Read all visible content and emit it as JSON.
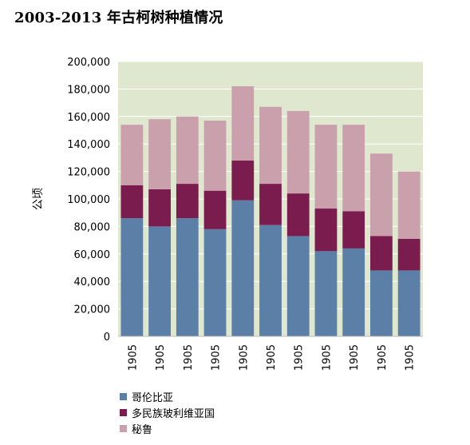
{
  "chart_data": {
    "type": "bar",
    "stacked": true,
    "title": "2003-2013 年古柯树种植情况",
    "ylabel": "公顷",
    "ylim": [
      0,
      200000
    ],
    "yticks": [
      0,
      20000,
      40000,
      60000,
      80000,
      100000,
      120000,
      140000,
      160000,
      180000,
      200000
    ],
    "ytick_labels": [
      "0",
      "20,000",
      "40,000",
      "60,000",
      "80,000",
      "100,000",
      "120,000",
      "140,000",
      "160,000",
      "180,000",
      "200,000"
    ],
    "categories": [
      "1905",
      "1905",
      "1905",
      "1905",
      "1905",
      "1905",
      "1905",
      "1905",
      "1905",
      "1905",
      "1905"
    ],
    "series": [
      {
        "name": "哥伦比亚",
        "color": "#5b7fa6",
        "values": [
          86000,
          80000,
          86000,
          78000,
          99000,
          81000,
          73000,
          62000,
          64000,
          48000,
          48000
        ]
      },
      {
        "name": "多民族玻利维亚国",
        "color": "#7a1c4e",
        "values": [
          24000,
          27000,
          25000,
          28000,
          29000,
          30000,
          31000,
          31000,
          27000,
          25000,
          23000
        ]
      },
      {
        "name": "秘鲁",
        "color": "#c9a0ac",
        "values": [
          44000,
          51000,
          49000,
          51000,
          54000,
          56000,
          60000,
          61000,
          63000,
          60000,
          49000
        ]
      }
    ],
    "grid": true,
    "plot_background": "#dfe8cf",
    "legend_position": "bottom-left"
  }
}
